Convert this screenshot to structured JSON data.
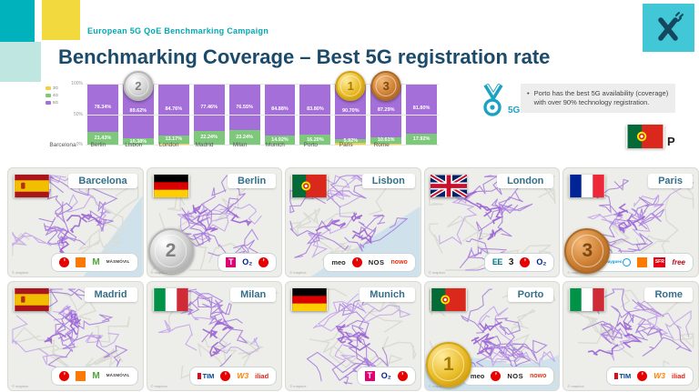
{
  "header": {
    "kicker": "European 5G QoE Benchmarking Campaign",
    "title": "Benchmarking Coverage – Best 5G registration rate",
    "logo_letter": "X"
  },
  "chart_data": {
    "type": "bar",
    "stacked": true,
    "title": "",
    "xlabel": "",
    "ylabel": "",
    "ylim": [
      0,
      100
    ],
    "axis_ticks": [
      "100%",
      "50%",
      "0%"
    ],
    "categories": [
      "Barcelona",
      "Berlin",
      "Lisbon",
      "London",
      "Madrid",
      "Milan",
      "Munich",
      "Porto",
      "Paris",
      "Rome"
    ],
    "series": [
      {
        "name": "5G",
        "color": "#a46fd8",
        "show_label": true,
        "values": [
          78.34,
          89.62,
          84.76,
          77.46,
          76.55,
          84.88,
          83.8,
          90.7,
          87.29,
          81.8
        ]
      },
      {
        "name": "4G",
        "color": "#7dc87a",
        "show_label": true,
        "values": [
          21.43,
          10.38,
          13.17,
          22.24,
          23.24,
          14.92,
          16.2,
          5.92,
          10.61,
          17.92
        ]
      },
      {
        "name": "3G",
        "color": "#f2cf3e",
        "show_label": false,
        "values": [
          0.23,
          0.0,
          2.07,
          0.3,
          0.21,
          0.2,
          0.0,
          3.38,
          2.1,
          0.28
        ]
      }
    ],
    "legend": [
      {
        "label": "3G",
        "color": "#f2cf3e"
      },
      {
        "label": "4G",
        "color": "#7dc87a"
      },
      {
        "label": "5G",
        "color": "#a46fd8"
      }
    ],
    "legend_position": "left",
    "grid": true,
    "medals": [
      {
        "city": "Porto",
        "rank": "1",
        "metal": "gold"
      },
      {
        "city": "Berlin",
        "rank": "2",
        "metal": "silver"
      },
      {
        "city": "Paris",
        "rank": "3",
        "metal": "bronze"
      }
    ]
  },
  "callout": {
    "medal_label": "5G",
    "bullet": "•",
    "text": "Porto has the best 5G availability (coverage) with over 90% technology registration.",
    "country_letter": "P",
    "accent_color": "#1ba3c4"
  },
  "cities": [
    {
      "name": "Barcelona",
      "flag": "spain",
      "operators": [
        "vodafone",
        "orange",
        "movistar",
        "masmovil"
      ],
      "medal": null,
      "water": "right"
    },
    {
      "name": "Berlin",
      "flag": "germany",
      "operators": [
        "telekom",
        "o2",
        "vodafone"
      ],
      "medal": "2",
      "water": null
    },
    {
      "name": "Lisbon",
      "flag": "portugal",
      "operators": [
        "meo",
        "vodafone",
        "nos",
        "nowo"
      ],
      "medal": null,
      "water": "bottomright"
    },
    {
      "name": "London",
      "flag": "uk",
      "operators": [
        "ee",
        "three",
        "vodafone",
        "o2"
      ],
      "medal": null,
      "water": null
    },
    {
      "name": "Paris",
      "flag": "france",
      "operators": [
        "bouygues",
        "orange",
        "sfr",
        "free"
      ],
      "medal": "3",
      "water": null
    },
    {
      "name": "Madrid",
      "flag": "spain",
      "operators": [
        "vodafone",
        "orange",
        "movistar",
        "masmovil"
      ],
      "medal": null,
      "water": null
    },
    {
      "name": "Milan",
      "flag": "italy",
      "operators": [
        "tim",
        "vodafone",
        "windtre",
        "iliad"
      ],
      "medal": null,
      "water": null
    },
    {
      "name": "Munich",
      "flag": "germany",
      "operators": [
        "telekom",
        "o2",
        "vodafone"
      ],
      "medal": null,
      "water": null
    },
    {
      "name": "Porto",
      "flag": "portugal",
      "operators": [
        "meo",
        "vodafone",
        "nos",
        "nowo"
      ],
      "medal": "1",
      "water": "bottom"
    },
    {
      "name": "Rome",
      "flag": "italy",
      "operators": [
        "tim",
        "vodafone",
        "windtre",
        "iliad"
      ],
      "medal": null,
      "water": null
    }
  ],
  "operators": {
    "vodafone": {
      "text": "’"
    },
    "orange": {
      "text": ""
    },
    "movistar": {
      "text": "M"
    },
    "masmovil": {
      "text": "MÁSMÓVIL"
    },
    "telekom": {
      "text": "T"
    },
    "o2": {
      "text": "O₂"
    },
    "meo": {
      "text": "meo"
    },
    "nos": {
      "text": "NOS"
    },
    "nowo": {
      "text": "nowo"
    },
    "ee": {
      "text": "EE"
    },
    "three": {
      "text": "3"
    },
    "bouygues": {
      "text": "bouygues"
    },
    "sfr": {
      "text": "SFR"
    },
    "free": {
      "text": "free"
    },
    "tim": {
      "text": "TIM"
    },
    "windtre": {
      "text": "W3"
    },
    "iliad": {
      "text": "iliad"
    }
  },
  "map_attribution": "© mapbox"
}
